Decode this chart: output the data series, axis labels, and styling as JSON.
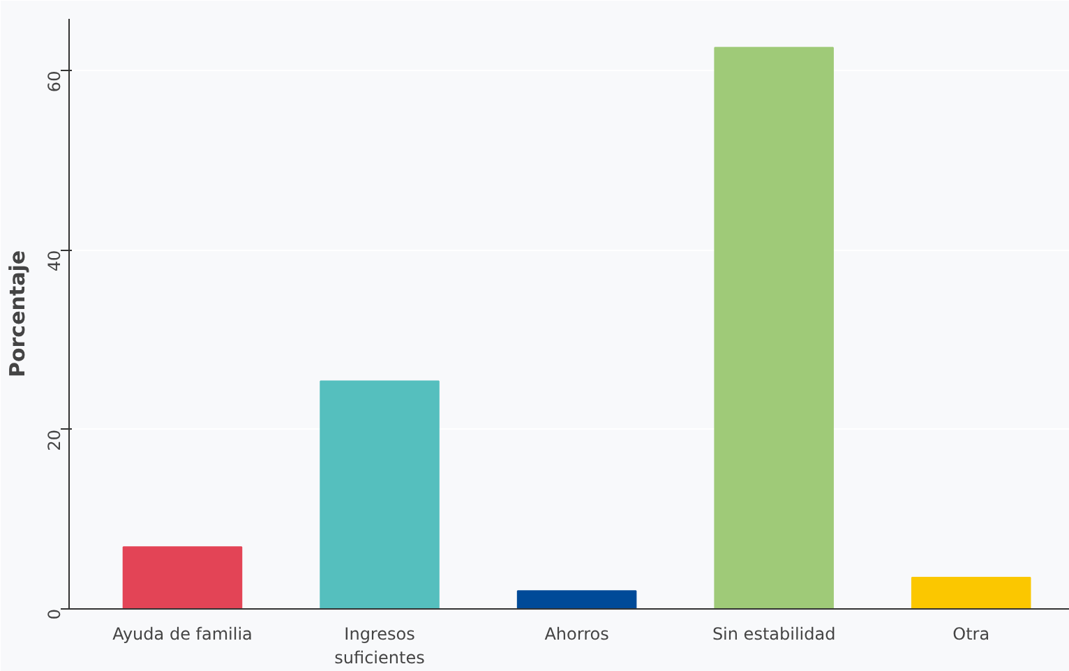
{
  "chart_data": {
    "type": "bar",
    "ylabel": "Porcentaje",
    "categories": [
      "Ayuda de familia",
      "Ingresos\nsuficientes",
      "Ahorros",
      "Sin estabilidad",
      "Otra"
    ],
    "values": [
      6.9,
      25.4,
      2.0,
      62.6,
      3.5
    ],
    "colors": [
      "#e34456",
      "#55bfbe",
      "#004a98",
      "#9fca78",
      "#fbc700"
    ],
    "ylim": [
      0,
      65.8
    ],
    "yticks": [
      0,
      20,
      40,
      60
    ],
    "grid": "y"
  }
}
